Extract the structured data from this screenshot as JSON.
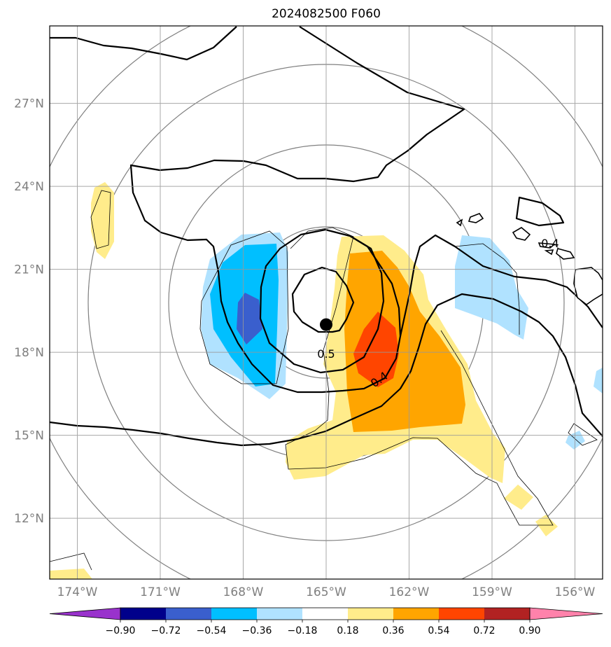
{
  "title": "2024082500 F060",
  "map": {
    "lon_range": [
      -175.0,
      -155.0
    ],
    "lat_range": [
      9.8,
      29.8
    ],
    "lon_ticks": [
      {
        "value": -174,
        "label": "174°W"
      },
      {
        "value": -171,
        "label": "171°W"
      },
      {
        "value": -168,
        "label": "168°W"
      },
      {
        "value": -165,
        "label": "165°W"
      },
      {
        "value": -162,
        "label": "162°W"
      },
      {
        "value": -159,
        "label": "159°W"
      },
      {
        "value": -156,
        "label": "156°W"
      }
    ],
    "lat_ticks": [
      {
        "value": 27,
        "label": "27°N"
      },
      {
        "value": 24,
        "label": "24°N"
      },
      {
        "value": 21,
        "label": "21°N"
      },
      {
        "value": 18,
        "label": "18°N"
      },
      {
        "value": 15,
        "label": "15°N"
      },
      {
        "value": 12,
        "label": "12°N"
      }
    ],
    "storm_center": {
      "lon": -165.0,
      "lat": 19.0
    },
    "contour_labels": [
      {
        "text": "0.5",
        "lon": -165.0,
        "lat": 17.8
      },
      {
        "text": "0.4",
        "lon": -163.0,
        "lat": 16.9
      },
      {
        "text": "0.4",
        "lon": -156.9,
        "lat": 21.8
      }
    ],
    "grid_on": true,
    "range_rings": true
  },
  "colorbar": {
    "labels": [
      "−0.90",
      "−0.72",
      "−0.54",
      "−0.36",
      "−0.18",
      "0.18",
      "0.36",
      "0.54",
      "0.72",
      "0.90"
    ],
    "colors": [
      "#9932cc",
      "#00008b",
      "#3a5fcd",
      "#00bfff",
      "#b0e2ff",
      "#ffffff",
      "#ffec8b",
      "#ffa500",
      "#ff4500",
      "#b22222",
      "#ff82ab"
    ]
  }
}
